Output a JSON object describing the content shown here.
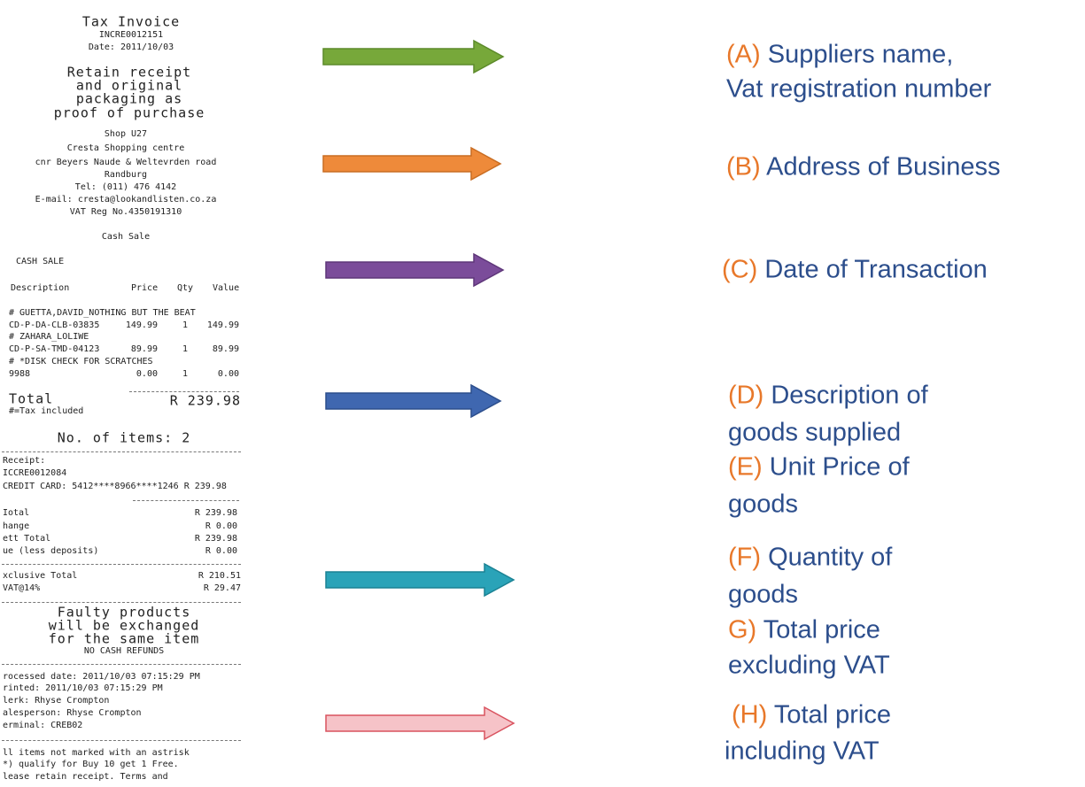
{
  "receipt": {
    "header": [
      "Tax Invoice",
      "INCRE0012151",
      "Date: 2011/10/03"
    ],
    "notice": [
      "Retain receipt",
      "and original",
      "packaging as",
      "proof of purchase"
    ],
    "address": [
      "Shop U27",
      "Cresta Shopping centre",
      "cnr Beyers Naude & Weltevrden road",
      "Randburg",
      "Tel: (011) 476 4142",
      "E-mail: cresta@lookandlisten.co.za",
      "VAT Reg No.4350191310",
      "Cash Sale"
    ],
    "sale_type": "CASH SALE",
    "columns": [
      "Description",
      "Price",
      "Qty",
      "Value"
    ],
    "items": [
      {
        "desc": "# GUETTA,DAVID_NOTHING BUT THE BEAT",
        "code": "CD-P-DA-CLB-03835",
        "price": "149.99",
        "qty": "1",
        "value": "149.99"
      },
      {
        "desc": "# ZAHARA_LOLIWE",
        "code": "CD-P-SA-TMD-04123",
        "price": "89.99",
        "qty": "1",
        "value": "89.99"
      },
      {
        "desc": "# *DISK CHECK FOR SCRATCHES",
        "code": "9988",
        "price": "0.00",
        "qty": "1",
        "value": "0.00"
      }
    ],
    "total_label": "Total",
    "total_value": "R 239.98",
    "tax_note": "#=Tax included",
    "item_count": "No. of items: 2",
    "payment": [
      "Receipt:",
      "ICCRE0012084",
      "CREDIT CARD: 5412****8966****1246 R 239.98"
    ],
    "summary": [
      [
        "Iotal",
        "R 239.98"
      ],
      [
        "hange",
        "R 0.00"
      ],
      [
        "ett Total",
        "R 239.98"
      ],
      [
        "ue (less deposits)",
        "R 0.00"
      ]
    ],
    "vat": [
      [
        "xclusive Total",
        "R 210.51"
      ],
      [
        "VAT@14%",
        "R 29.47"
      ]
    ],
    "policy": [
      "Faulty products",
      "will be exchanged",
      "for the same item",
      "NO CASH REFUNDS"
    ],
    "footer": [
      "rocessed date: 2011/10/03 07:15:29 PM",
      "rinted: 2011/10/03 07:15:29 PM",
      "lerk: Rhyse Crompton",
      "alesperson: Rhyse Crompton",
      "erminal: CREB02"
    ],
    "terms": [
      "ll items not marked with an astrisk",
      "*) qualify for Buy 10 get 1 Free.",
      "lease retain receipt. Terms and"
    ]
  },
  "labels": [
    {
      "letter": "(A)",
      "lines": [
        "Suppliers name,",
        "Vat registration number"
      ]
    },
    {
      "letter": "(B)",
      "lines": [
        "Address of Business"
      ]
    },
    {
      "letter": "(C)",
      "lines": [
        "Date of Transaction"
      ]
    },
    {
      "letter": "(D)",
      "lines": [
        "Description of",
        "goods supplied"
      ]
    },
    {
      "letter": "(E)",
      "lines": [
        "Unit Price of",
        "goods"
      ]
    },
    {
      "letter": "(F)",
      "lines": [
        "Quantity of",
        "goods"
      ]
    },
    {
      "letter": "G)",
      "lines": [
        "Total price",
        "excluding VAT"
      ]
    },
    {
      "letter": "(H)",
      "lines": [
        "Total price",
        "including VAT"
      ]
    }
  ]
}
